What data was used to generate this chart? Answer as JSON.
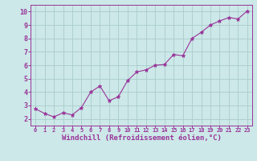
{
  "x": [
    0,
    1,
    2,
    3,
    4,
    5,
    6,
    7,
    8,
    9,
    10,
    11,
    12,
    13,
    14,
    15,
    16,
    17,
    18,
    19,
    20,
    21,
    22,
    23
  ],
  "y": [
    2.75,
    2.4,
    2.15,
    2.45,
    2.3,
    2.85,
    4.0,
    4.45,
    3.35,
    3.65,
    4.85,
    5.5,
    5.65,
    6.0,
    6.05,
    6.8,
    6.7,
    8.0,
    8.45,
    9.0,
    9.3,
    9.55,
    9.45,
    10.05
  ],
  "line_color": "#993399",
  "marker": "*",
  "marker_color": "#993399",
  "bg_color": "#cce8e8",
  "grid_color": "#aacccc",
  "xlabel": "Windchill (Refroidissement éolien,°C)",
  "xlabel_color": "#993399",
  "tick_color": "#993399",
  "spine_color": "#993399",
  "xlim": [
    -0.5,
    23.5
  ],
  "ylim": [
    1.5,
    10.5
  ],
  "yticks": [
    2,
    3,
    4,
    5,
    6,
    7,
    8,
    9,
    10
  ],
  "xticks": [
    0,
    1,
    2,
    3,
    4,
    5,
    6,
    7,
    8,
    9,
    10,
    11,
    12,
    13,
    14,
    15,
    16,
    17,
    18,
    19,
    20,
    21,
    22,
    23
  ],
  "xlabel_fontsize": 6.5,
  "xtick_fontsize": 5.0,
  "ytick_fontsize": 6.0
}
